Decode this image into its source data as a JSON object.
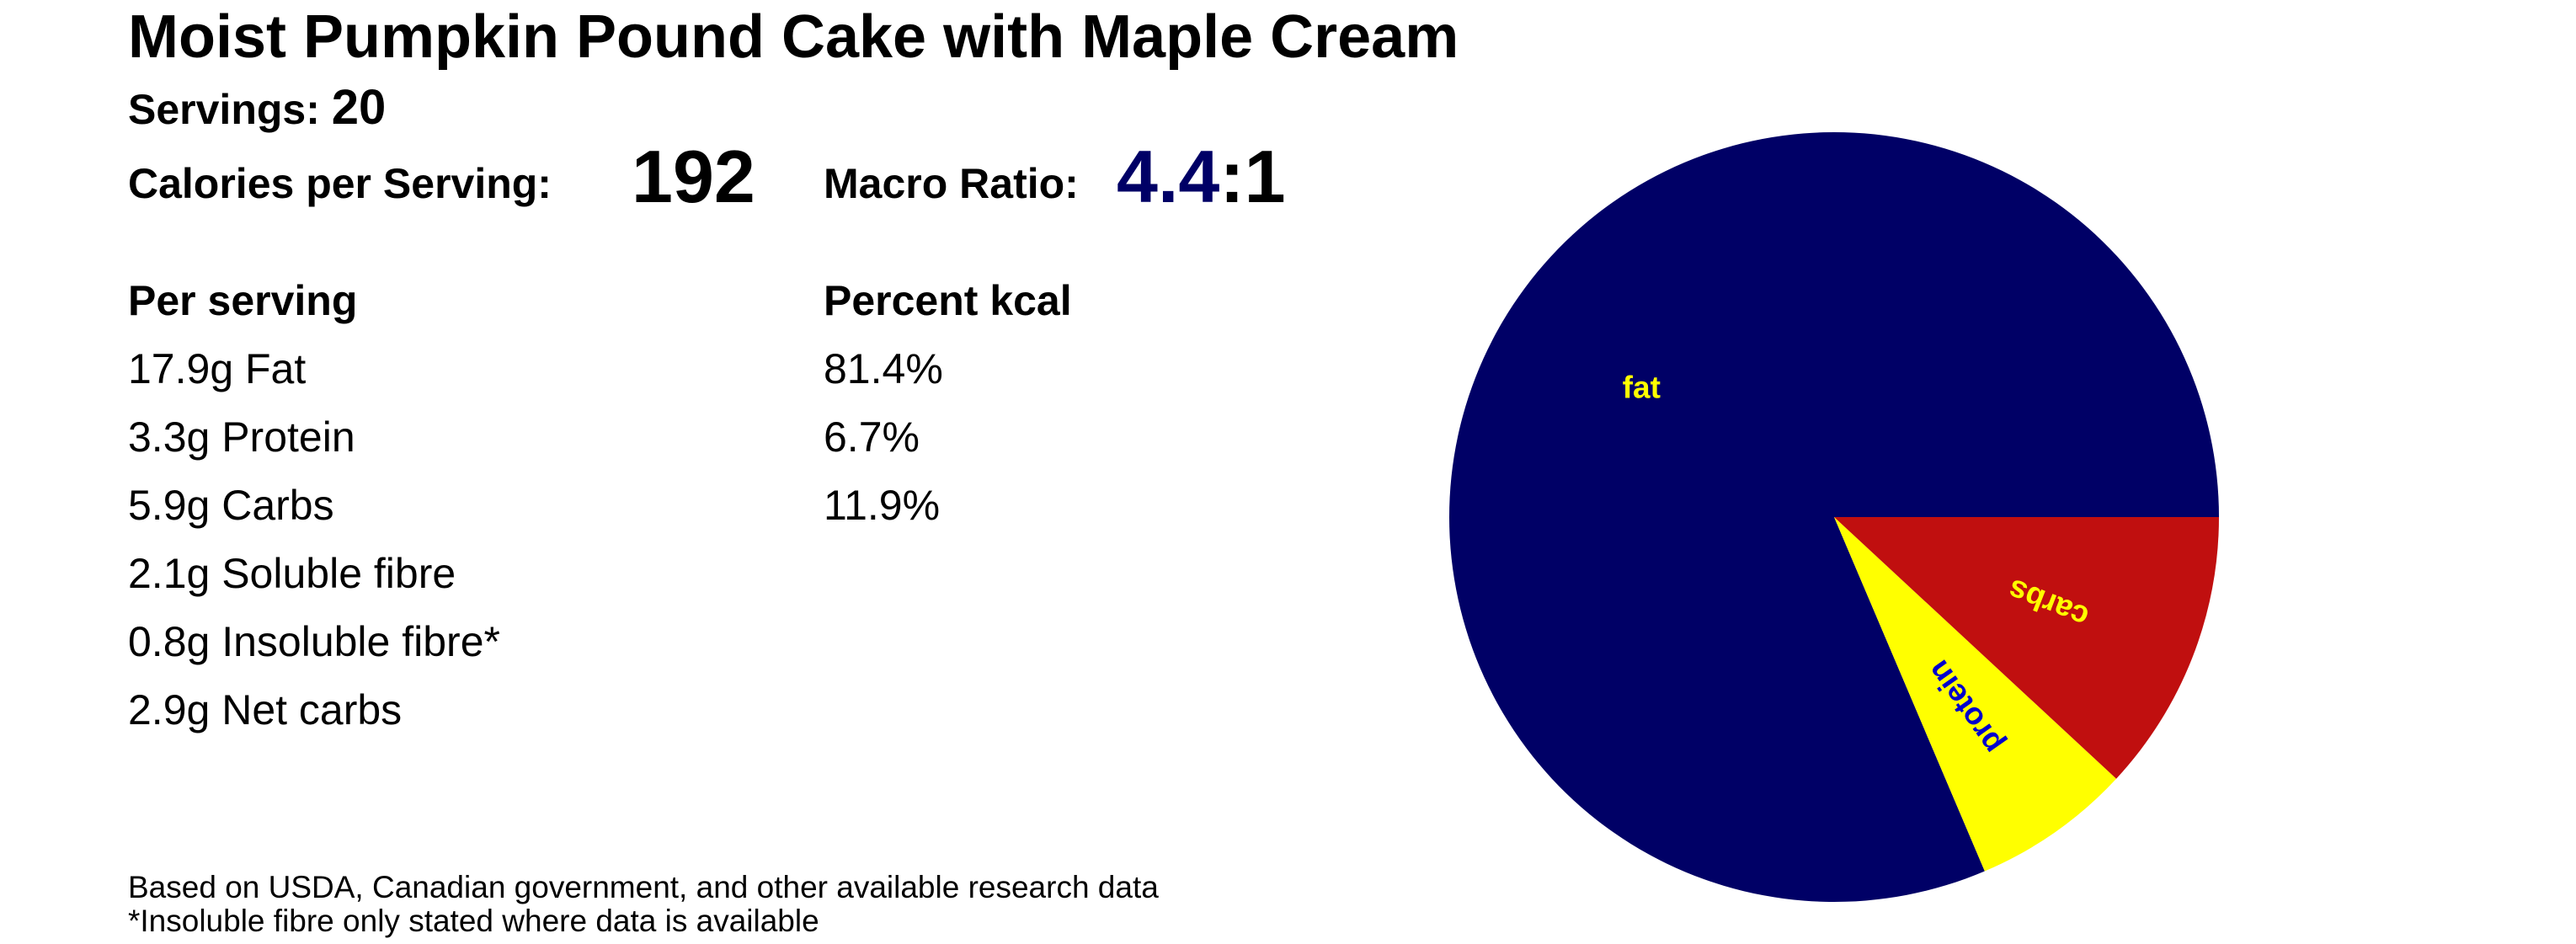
{
  "header": {
    "title": "Moist Pumpkin Pound Cake with Maple Cream",
    "servings_label": "Servings:",
    "servings_value": "20",
    "calories_label": "Calories per Serving:",
    "calories_value": "192",
    "ratio_label": "Macro Ratio:",
    "ratio_value": "4.4",
    "ratio_suffix": ":1",
    "ratio_color": "#000066"
  },
  "per_serving": {
    "heading": "Per serving",
    "rows": [
      "17.9g Fat",
      "3.3g Protein",
      "5.9g Carbs",
      "2.1g Soluble fibre",
      "0.8g Insoluble fibre*",
      "2.9g Net carbs"
    ]
  },
  "percent_kcal": {
    "heading": "Percent kcal",
    "rows": [
      "81.4%",
      "6.7%",
      "11.9%"
    ]
  },
  "footer": {
    "line1": "Based on USDA, Canadian government, and other available research data",
    "line2": "*Insoluble fibre only stated where data is available"
  },
  "chart_data": {
    "type": "pie",
    "slices": [
      {
        "label": "fat",
        "value": 81.4,
        "color": "#000066",
        "label_color": "#ffff00"
      },
      {
        "label": "protein",
        "value": 6.7,
        "color": "#ffff00",
        "label_color": "#0000cc"
      },
      {
        "label": "carbs",
        "value": 11.9,
        "color": "#c00f0f",
        "label_color": "#ffff00"
      }
    ],
    "start_angle_deg": 0,
    "direction": "counterclockwise"
  }
}
